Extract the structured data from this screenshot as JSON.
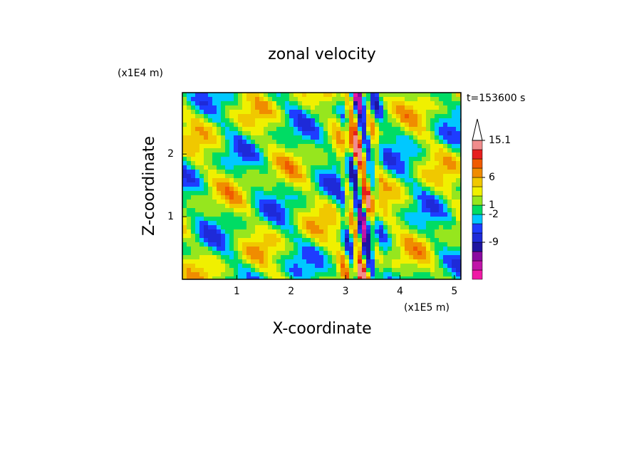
{
  "chart_data": {
    "type": "contour",
    "title": "zonal velocity",
    "x_label": "X-coordinate",
    "y_label": "Z-coordinate",
    "x_unit": "(x1E5 m)",
    "y_unit": "(x1E4 m)",
    "time_label": "t=153600 s",
    "xlim": [
      0,
      5.12
    ],
    "ylim": [
      0,
      2.98
    ],
    "xticks": [
      1,
      2,
      3,
      4,
      5
    ],
    "yticks": [
      1,
      2
    ],
    "colorbar": {
      "levels": [
        -15,
        -13,
        -11,
        -10,
        -9,
        -6,
        -4,
        -2,
        1,
        2,
        4,
        6,
        9,
        11,
        13,
        15.1
      ],
      "colors": [
        "#f01aa5",
        "#c014a8",
        "#8a0aa0",
        "#1e14a0",
        "#1e2ad8",
        "#1e3cff",
        "#00c8ff",
        "#00dc64",
        "#96e61e",
        "#f0f000",
        "#f0c800",
        "#f08c00",
        "#f05a00",
        "#e61e1e",
        "#f08c8c"
      ],
      "ticks": [
        -9,
        -2,
        1,
        6,
        15.1
      ]
    }
  }
}
